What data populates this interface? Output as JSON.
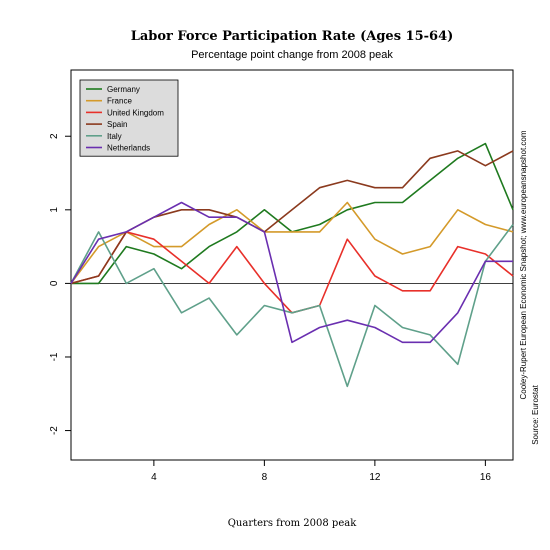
{
  "chart_data": {
    "type": "line",
    "title": "Labor Force Participation Rate (Ages 15-64)",
    "subtitle": "Percentage point change from 2008 peak",
    "xlabel": "Quarters from 2008 peak",
    "ylabel": "",
    "xlim": [
      1,
      17
    ],
    "ylim": [
      -2.4,
      2.9
    ],
    "xticks": [
      4,
      8,
      12,
      16
    ],
    "yticks": [
      -2,
      -1,
      0,
      1,
      2
    ],
    "zero_line": true,
    "grid": false,
    "legend_position": "top-left",
    "x": [
      1,
      2,
      3,
      4,
      5,
      6,
      7,
      8,
      9,
      10,
      11,
      12,
      13,
      14,
      15,
      16,
      17
    ],
    "series": [
      {
        "name": "Germany",
        "color": "#1f7a1f",
        "values": [
          0,
          0,
          0.5,
          0.4,
          0.2,
          0.5,
          0.7,
          1.0,
          0.7,
          0.8,
          1.0,
          1.1,
          1.1,
          1.4,
          1.7,
          1.9,
          1.0
        ]
      },
      {
        "name": "France",
        "color": "#d49a2a",
        "values": [
          0,
          0.5,
          0.7,
          0.5,
          0.5,
          0.8,
          1.0,
          0.7,
          0.7,
          0.7,
          1.1,
          0.6,
          0.4,
          0.5,
          1.0,
          0.8,
          0.7
        ]
      },
      {
        "name": "United Kingdom",
        "color": "#e8302a",
        "values": [
          0,
          0.1,
          0.7,
          0.6,
          0.3,
          0.0,
          0.5,
          0.0,
          -0.4,
          -0.3,
          0.6,
          0.1,
          -0.1,
          -0.1,
          0.5,
          0.4,
          0.1
        ]
      },
      {
        "name": "Spain",
        "color": "#8b3a1e",
        "values": [
          0,
          0.1,
          0.7,
          0.9,
          1.0,
          1.0,
          0.9,
          0.7,
          1.0,
          1.3,
          1.4,
          1.3,
          1.3,
          1.7,
          1.8,
          1.6,
          1.8
        ]
      },
      {
        "name": "Italy",
        "color": "#5fa08a",
        "values": [
          0,
          0.7,
          0.0,
          0.2,
          -0.4,
          -0.2,
          -0.7,
          -0.3,
          -0.4,
          -0.3,
          -1.4,
          -0.3,
          -0.6,
          -0.7,
          -1.1,
          0.3,
          0.8
        ]
      },
      {
        "name": "Netherlands",
        "color": "#6a2fb0",
        "values": [
          0,
          0.6,
          0.7,
          0.9,
          1.1,
          0.9,
          0.9,
          0.7,
          -0.8,
          -0.6,
          -0.5,
          -0.6,
          -0.8,
          -0.8,
          -0.4,
          0.3,
          0.3
        ]
      }
    ]
  },
  "side_notes": {
    "line1": "Cooley-Rupert European Economic Snapshot; www.europeansnapshot.com",
    "line2": "Source: Eurostat"
  }
}
